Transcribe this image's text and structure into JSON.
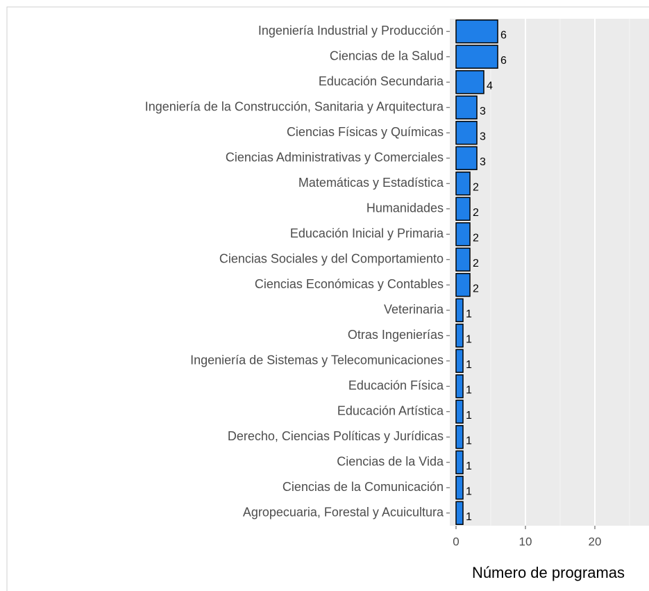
{
  "chart_data": {
    "type": "bar",
    "orientation": "horizontal",
    "x_label": "Número de programas",
    "categories": [
      "Ingeniería Industrial y Producción",
      "Ciencias de la Salud",
      "Educación Secundaria",
      "Ingeniería de la Construcción, Sanitaria y Arquitectura",
      "Ciencias Físicas y Químicas",
      "Ciencias Administrativas y Comerciales",
      "Matemáticas y Estadística",
      "Humanidades",
      "Educación Inicial y Primaria",
      "Ciencias Sociales y del Comportamiento",
      "Ciencias Económicas y Contables",
      "Veterinaria",
      "Otras Ingenierías",
      "Ingeniería de Sistemas y Telecomunicaciones",
      "Educación Física",
      "Educación Artística",
      "Derecho, Ciencias Políticas y Jurídicas",
      "Ciencias de la Vida",
      "Ciencias de la Comunicación",
      "Agropecuaria, Forestal y Acuicultura"
    ],
    "values": [
      6,
      6,
      4,
      3,
      3,
      3,
      2,
      2,
      2,
      2,
      2,
      1,
      1,
      1,
      1,
      1,
      1,
      1,
      1,
      1
    ],
    "color": "#1f7fe8",
    "xlim": [
      -0.9,
      27.8
    ],
    "xticks": [
      0,
      10,
      20
    ],
    "minor_xticks": [
      5,
      15,
      25
    ],
    "grid": true
  }
}
